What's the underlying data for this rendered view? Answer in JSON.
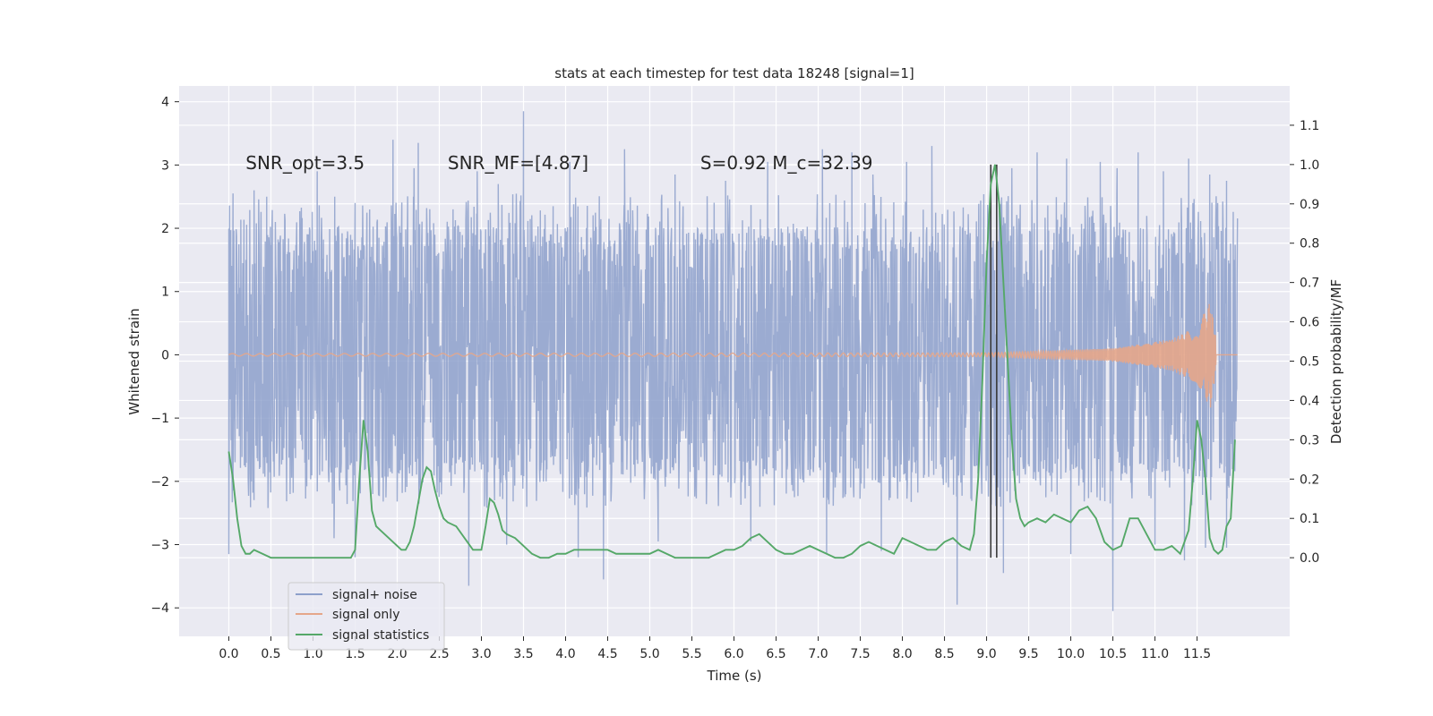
{
  "chart_data": {
    "type": "line",
    "title": "stats at each timestep for test data 18248 [signal=1]",
    "xlabel": "Time (s)",
    "ylabel": "Whitened strain",
    "y2label": "Detection probability/MF",
    "xlim": [
      -0.59,
      12.6
    ],
    "ylim": [
      -4.45,
      4.25
    ],
    "y2lim": [
      -0.2,
      1.2
    ],
    "x_ticks": [
      0.0,
      0.5,
      1.0,
      1.5,
      2.0,
      2.5,
      3.0,
      3.5,
      4.0,
      4.5,
      5.0,
      5.5,
      6.0,
      6.5,
      7.0,
      7.5,
      8.0,
      8.5,
      9.0,
      9.5,
      10.0,
      10.5,
      11.0,
      11.5
    ],
    "x_tick_labels": [
      "0.0",
      "0.5",
      "1.0",
      "1.5",
      "2.0",
      "2.5",
      "3.0",
      "3.5",
      "4.0",
      "4.5",
      "5.0",
      "5.5",
      "6.0",
      "6.5",
      "7.0",
      "7.5",
      "8.0",
      "8.5",
      "9.0",
      "9.5",
      "10.0",
      "10.5",
      "11.0",
      "11.5"
    ],
    "y_ticks": [
      -4,
      -3,
      -2,
      -1,
      0,
      1,
      2,
      3,
      4
    ],
    "y_tick_labels": [
      "−4",
      "−3",
      "−2",
      "−1",
      "0",
      "1",
      "2",
      "3",
      "4"
    ],
    "y2_ticks": [
      0.0,
      0.1,
      0.2,
      0.3,
      0.4,
      0.5,
      0.6,
      0.7,
      0.8,
      0.9,
      1.0,
      1.1
    ],
    "y2_tick_labels": [
      "0.0",
      "0.1",
      "0.2",
      "0.3",
      "0.4",
      "0.5",
      "0.6",
      "0.7",
      "0.8",
      "0.9",
      "1.0",
      "1.1"
    ],
    "grid": true,
    "legend_position": "lower-left",
    "annotations": [
      {
        "text": "SNR_opt=3.5",
        "x": 0.2,
        "y": 3.03
      },
      {
        "text": "SNR_MF=[4.87]",
        "x": 2.6,
        "y": 3.03
      },
      {
        "text": "S=0.92   M_c=32.39",
        "x": 5.6,
        "y": 3.03
      }
    ],
    "vlines": [
      {
        "x": 9.05,
        "y2": [
          0.0,
          1.0
        ]
      },
      {
        "x": 9.12,
        "y2": [
          0.0,
          1.0
        ]
      }
    ],
    "series": [
      {
        "name": "signal+ noise",
        "axis": "left",
        "color": "#8da0cb",
        "kind": "noise",
        "x_range": [
          0.0,
          11.98
        ],
        "typical_band": [
          -1.5,
          1.7
        ],
        "positive_spikes": [
          [
            0.05,
            2.55
          ],
          [
            0.3,
            2.6
          ],
          [
            0.45,
            2.5
          ],
          [
            1.05,
            2.9
          ],
          [
            1.5,
            2.4
          ],
          [
            1.95,
            3.4
          ],
          [
            2.2,
            2.95
          ],
          [
            2.25,
            3.35
          ],
          [
            2.95,
            2.9
          ],
          [
            3.2,
            2.7
          ],
          [
            3.5,
            3.85
          ],
          [
            4.05,
            3.05
          ],
          [
            4.7,
            3.25
          ],
          [
            5.3,
            2.85
          ],
          [
            5.9,
            2.75
          ],
          [
            6.4,
            3.05
          ],
          [
            7.05,
            3.25
          ],
          [
            7.4,
            3.2
          ],
          [
            7.65,
            2.85
          ],
          [
            8.05,
            3.05
          ],
          [
            8.35,
            3.3
          ],
          [
            9.3,
            2.95
          ],
          [
            9.6,
            3.2
          ],
          [
            9.95,
            3.1
          ],
          [
            10.35,
            3.05
          ],
          [
            10.55,
            2.95
          ],
          [
            10.8,
            3.2
          ],
          [
            11.1,
            2.9
          ],
          [
            11.4,
            3.1
          ],
          [
            11.65,
            2.85
          ],
          [
            11.85,
            2.75
          ]
        ],
        "negative_spikes": [
          [
            0.0,
            -3.15
          ],
          [
            1.25,
            -2.9
          ],
          [
            1.5,
            -3.2
          ],
          [
            2.85,
            -3.65
          ],
          [
            3.3,
            -3.0
          ],
          [
            4.15,
            -3.2
          ],
          [
            4.45,
            -3.55
          ],
          [
            5.1,
            -2.95
          ],
          [
            6.2,
            -2.95
          ],
          [
            7.1,
            -3.15
          ],
          [
            7.75,
            -3.1
          ],
          [
            8.65,
            -3.95
          ],
          [
            9.2,
            -3.45
          ],
          [
            10.0,
            -3.15
          ],
          [
            10.5,
            -4.05
          ],
          [
            11.0,
            -3.0
          ],
          [
            11.35,
            -3.25
          ],
          [
            11.6,
            -3.05
          ],
          [
            11.85,
            -3.05
          ]
        ]
      },
      {
        "name": "signal only",
        "axis": "left",
        "color": "#e5a68a",
        "kind": "chirp",
        "baseline": 0.0,
        "amplitude_points": [
          [
            0.0,
            0.02
          ],
          [
            9.0,
            0.03
          ],
          [
            10.5,
            0.1
          ],
          [
            11.2,
            0.25
          ],
          [
            11.5,
            0.45
          ],
          [
            11.66,
            0.85
          ],
          [
            11.72,
            0.3
          ],
          [
            11.73,
            0.0
          ]
        ]
      },
      {
        "name": "signal statistics",
        "axis": "right",
        "color": "#55a868",
        "kind": "line",
        "x": [
          0.0,
          0.05,
          0.1,
          0.15,
          0.2,
          0.25,
          0.3,
          0.4,
          0.5,
          0.6,
          0.7,
          0.8,
          0.9,
          1.0,
          1.1,
          1.2,
          1.3,
          1.4,
          1.45,
          1.5,
          1.55,
          1.6,
          1.65,
          1.7,
          1.75,
          1.8,
          1.85,
          1.9,
          2.0,
          2.05,
          2.1,
          2.15,
          2.2,
          2.25,
          2.3,
          2.35,
          2.4,
          2.45,
          2.5,
          2.55,
          2.6,
          2.65,
          2.7,
          2.8,
          2.9,
          3.0,
          3.05,
          3.1,
          3.15,
          3.2,
          3.25,
          3.3,
          3.4,
          3.5,
          3.6,
          3.7,
          3.8,
          3.9,
          4.0,
          4.1,
          4.2,
          4.3,
          4.4,
          4.5,
          4.6,
          4.7,
          4.8,
          4.9,
          5.0,
          5.1,
          5.2,
          5.3,
          5.4,
          5.5,
          5.6,
          5.7,
          5.8,
          5.9,
          6.0,
          6.1,
          6.2,
          6.3,
          6.4,
          6.5,
          6.6,
          6.7,
          6.8,
          6.9,
          7.0,
          7.1,
          7.2,
          7.3,
          7.4,
          7.5,
          7.6,
          7.7,
          7.8,
          7.9,
          8.0,
          8.1,
          8.2,
          8.3,
          8.4,
          8.5,
          8.6,
          8.7,
          8.8,
          8.85,
          8.9,
          8.95,
          9.0,
          9.05,
          9.1,
          9.15,
          9.2,
          9.25,
          9.3,
          9.35,
          9.4,
          9.45,
          9.5,
          9.6,
          9.7,
          9.8,
          9.9,
          10.0,
          10.1,
          10.2,
          10.3,
          10.4,
          10.5,
          10.6,
          10.7,
          10.8,
          10.9,
          11.0,
          11.1,
          11.2,
          11.3,
          11.4,
          11.45,
          11.5,
          11.55,
          11.6,
          11.65,
          11.7,
          11.75,
          11.8,
          11.85,
          11.9,
          11.95
        ],
        "values": [
          0.27,
          0.2,
          0.1,
          0.03,
          0.01,
          0.01,
          0.02,
          0.01,
          0.0,
          0.0,
          0.0,
          0.0,
          0.0,
          0.0,
          0.0,
          0.0,
          0.0,
          0.0,
          0.0,
          0.02,
          0.2,
          0.35,
          0.27,
          0.12,
          0.08,
          0.07,
          0.06,
          0.05,
          0.03,
          0.02,
          0.02,
          0.04,
          0.08,
          0.14,
          0.2,
          0.23,
          0.22,
          0.17,
          0.13,
          0.1,
          0.09,
          0.085,
          0.08,
          0.05,
          0.02,
          0.02,
          0.08,
          0.15,
          0.14,
          0.11,
          0.07,
          0.06,
          0.05,
          0.03,
          0.01,
          0.0,
          0.0,
          0.01,
          0.01,
          0.02,
          0.02,
          0.02,
          0.02,
          0.02,
          0.01,
          0.01,
          0.01,
          0.01,
          0.01,
          0.02,
          0.01,
          0.0,
          0.0,
          0.0,
          0.0,
          0.0,
          0.01,
          0.02,
          0.02,
          0.03,
          0.05,
          0.06,
          0.04,
          0.02,
          0.01,
          0.01,
          0.02,
          0.03,
          0.02,
          0.01,
          0.0,
          0.0,
          0.01,
          0.03,
          0.04,
          0.03,
          0.02,
          0.01,
          0.05,
          0.04,
          0.03,
          0.02,
          0.02,
          0.04,
          0.05,
          0.03,
          0.02,
          0.06,
          0.2,
          0.45,
          0.75,
          0.95,
          1.0,
          0.9,
          0.7,
          0.5,
          0.3,
          0.15,
          0.1,
          0.08,
          0.09,
          0.1,
          0.09,
          0.11,
          0.1,
          0.09,
          0.12,
          0.13,
          0.1,
          0.04,
          0.02,
          0.03,
          0.1,
          0.1,
          0.06,
          0.02,
          0.02,
          0.03,
          0.01,
          0.07,
          0.2,
          0.35,
          0.3,
          0.2,
          0.05,
          0.02,
          0.01,
          0.02,
          0.08,
          0.1,
          0.3
        ]
      }
    ]
  }
}
